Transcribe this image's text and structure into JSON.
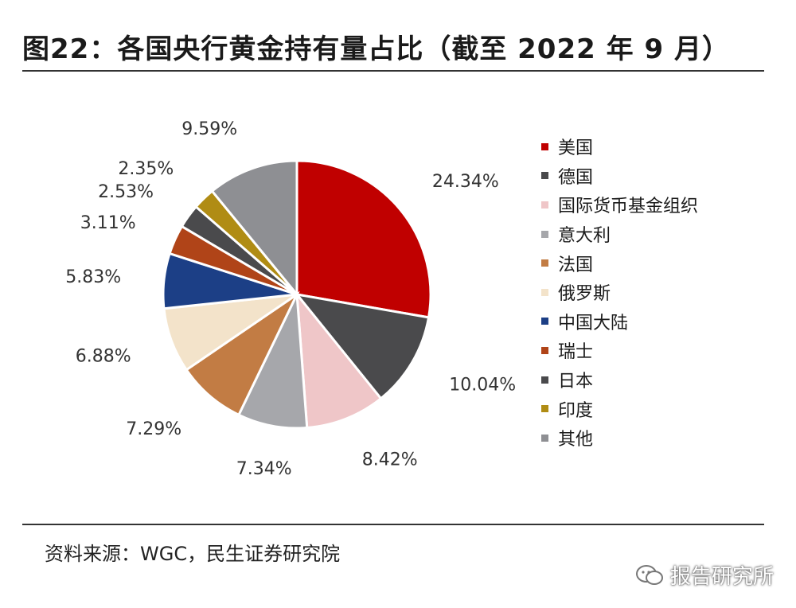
{
  "title": "图22：各国央行黄金持有量占比（截至 2022 年 9 月）",
  "source": "资料来源：WGC，民生证券研究院",
  "watermark": "报告研究所",
  "chart_data": {
    "type": "pie",
    "title": "图22：各国央行黄金持有量占比（截至 2022 年 9 月）",
    "legend_position": "right",
    "slices": [
      {
        "name": "美国",
        "value": 24.34,
        "label": "24.34%",
        "color": "#c00000"
      },
      {
        "name": "德国",
        "value": 10.04,
        "label": "10.04%",
        "color": "#4a4a4c"
      },
      {
        "name": "国际货币基金组织",
        "value": 8.42,
        "label": "8.42%",
        "color": "#efc6c8"
      },
      {
        "name": "意大利",
        "value": 7.34,
        "label": "7.34%",
        "color": "#a6a7ab"
      },
      {
        "name": "法国",
        "value": 7.29,
        "label": "7.29%",
        "color": "#c27c44"
      },
      {
        "name": "俄罗斯",
        "value": 6.88,
        "label": "6.88%",
        "color": "#f3e3ca"
      },
      {
        "name": "中国大陆",
        "value": 5.83,
        "label": "5.83%",
        "color": "#1c3f86"
      },
      {
        "name": "瑞士",
        "value": 3.11,
        "label": "3.11%",
        "color": "#b04418"
      },
      {
        "name": "日本",
        "value": 2.53,
        "label": "2.53%",
        "color": "#4a4a4c"
      },
      {
        "name": "印度",
        "value": 2.35,
        "label": "2.35%",
        "color": "#b08c14"
      },
      {
        "name": "其他",
        "value": 9.59,
        "label": "9.59%",
        "color": "#8e8f93"
      }
    ]
  }
}
